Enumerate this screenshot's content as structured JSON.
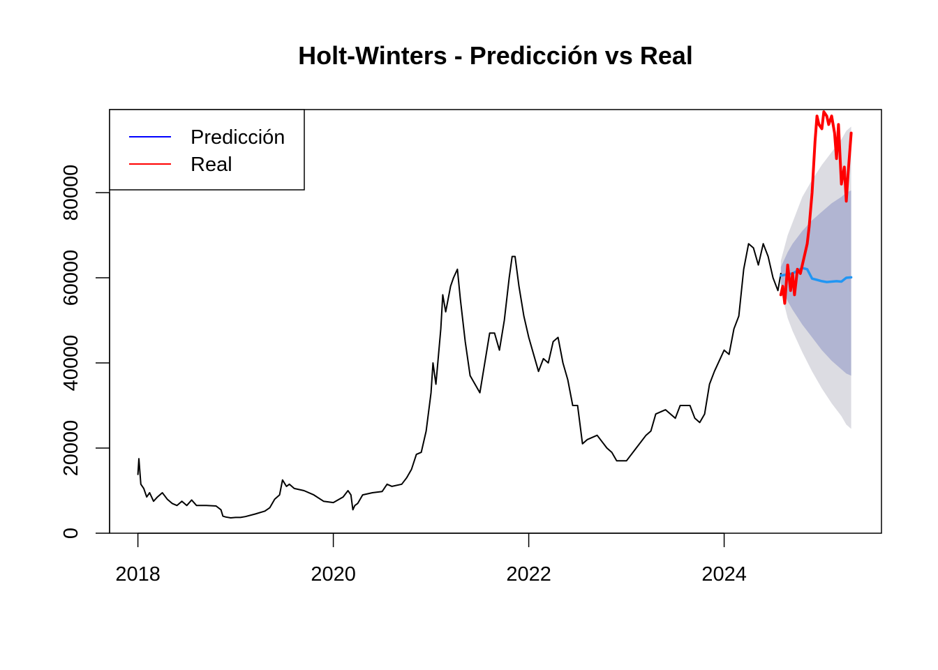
{
  "chart_data": {
    "type": "line",
    "title": "Holt-Winters - Predicción vs Real",
    "xlabel": "",
    "ylabel": "",
    "xlim": [
      2017.71,
      2025.61
    ],
    "ylim": [
      0,
      99500
    ],
    "x_ticks": [
      2018,
      2020,
      2022,
      2024
    ],
    "x_tick_labels": [
      "2018",
      "2020",
      "2022",
      "2024"
    ],
    "y_ticks": [
      0,
      20000,
      40000,
      60000,
      80000
    ],
    "y_tick_labels": [
      "0",
      "20000",
      "40000",
      "60000",
      "80000"
    ],
    "legend": {
      "position": "top-left",
      "entries": [
        {
          "label": "Predicción",
          "color": "#0000ff"
        },
        {
          "label": "Real",
          "color": "#ff0000"
        }
      ]
    },
    "colors": {
      "history": "#000000",
      "forecast": "#2196f3",
      "real": "#ff0000",
      "band95": "#dcdce2",
      "band80": "#b1b5d2"
    },
    "series": [
      {
        "role": "history",
        "x": [
          2018.0,
          2018.01,
          2018.03,
          2018.06,
          2018.09,
          2018.12,
          2018.16,
          2018.2,
          2018.25,
          2018.3,
          2018.35,
          2018.4,
          2018.45,
          2018.5,
          2018.55,
          2018.6,
          2018.7,
          2018.8,
          2018.85,
          2018.87,
          2018.9,
          2018.95,
          2019.0,
          2019.05,
          2019.1,
          2019.2,
          2019.3,
          2019.35,
          2019.4,
          2019.45,
          2019.48,
          2019.52,
          2019.55,
          2019.6,
          2019.7,
          2019.8,
          2019.9,
          2020.0,
          2020.1,
          2020.15,
          2020.18,
          2020.2,
          2020.22,
          2020.25,
          2020.3,
          2020.4,
          2020.5,
          2020.55,
          2020.6,
          2020.7,
          2020.75,
          2020.8,
          2020.85,
          2020.9,
          2020.95,
          2021.0,
          2021.02,
          2021.05,
          2021.1,
          2021.12,
          2021.15,
          2021.2,
          2021.23,
          2021.27,
          2021.3,
          2021.35,
          2021.4,
          2021.45,
          2021.5,
          2021.55,
          2021.6,
          2021.65,
          2021.7,
          2021.75,
          2021.8,
          2021.83,
          2021.86,
          2021.9,
          2021.95,
          2022.0,
          2022.05,
          2022.1,
          2022.15,
          2022.2,
          2022.25,
          2022.3,
          2022.35,
          2022.4,
          2022.45,
          2022.5,
          2022.55,
          2022.6,
          2022.7,
          2022.8,
          2022.85,
          2022.9,
          2023.0,
          2023.1,
          2023.2,
          2023.25,
          2023.3,
          2023.4,
          2023.5,
          2023.55,
          2023.65,
          2023.7,
          2023.75,
          2023.8,
          2023.85,
          2023.9,
          2024.0,
          2024.05,
          2024.1,
          2024.15,
          2024.2,
          2024.25,
          2024.3,
          2024.35,
          2024.4,
          2024.45,
          2024.5,
          2024.55,
          2024.58
        ],
        "y": [
          13800,
          17500,
          11500,
          10500,
          8500,
          9500,
          7500,
          8500,
          9500,
          8000,
          7000,
          6500,
          7500,
          6500,
          7800,
          6500,
          6500,
          6400,
          5500,
          4000,
          3800,
          3600,
          3700,
          3700,
          3900,
          4500,
          5200,
          6000,
          8000,
          9000,
          12500,
          11000,
          11500,
          10500,
          10000,
          9000,
          7500,
          7200,
          8500,
          10000,
          9000,
          5500,
          6500,
          7000,
          9000,
          9500,
          9800,
          11500,
          11000,
          11500,
          13000,
          15000,
          18500,
          19000,
          24000,
          33000,
          40000,
          35000,
          48000,
          56000,
          52000,
          58000,
          60000,
          62000,
          55000,
          45000,
          37000,
          35000,
          33000,
          40000,
          47000,
          47000,
          43000,
          50000,
          60000,
          65000,
          65000,
          58000,
          51000,
          46000,
          42000,
          38000,
          41000,
          40000,
          45000,
          46000,
          40000,
          36000,
          30000,
          30000,
          21000,
          22000,
          23000,
          20000,
          19000,
          17000,
          17000,
          20000,
          23000,
          24000,
          28000,
          29000,
          27000,
          30000,
          30000,
          27000,
          26000,
          28000,
          35000,
          38000,
          43000,
          42000,
          48000,
          51000,
          62000,
          68000,
          67000,
          63000,
          68000,
          65000,
          60000,
          57000,
          61000
        ]
      },
      {
        "role": "forecast",
        "x": [
          2024.58,
          2024.7,
          2024.8,
          2024.85,
          2024.9,
          2024.95,
          2025.0,
          2025.05,
          2025.1,
          2025.15,
          2025.2,
          2025.25,
          2025.3
        ],
        "y": [
          60500,
          61000,
          62300,
          62000,
          59800,
          59500,
          59200,
          59000,
          59100,
          59200,
          59100,
          60000,
          60100
        ]
      },
      {
        "role": "real",
        "x": [
          2024.58,
          2024.6,
          2024.62,
          2024.65,
          2024.68,
          2024.7,
          2024.72,
          2024.75,
          2024.78,
          2024.8,
          2024.83,
          2024.85,
          2024.87,
          2024.9,
          2024.93,
          2024.95,
          2024.97,
          2025.0,
          2025.02,
          2025.05,
          2025.07,
          2025.1,
          2025.13,
          2025.15,
          2025.17,
          2025.2,
          2025.23,
          2025.25,
          2025.27,
          2025.3
        ],
        "y": [
          56000,
          58000,
          54000,
          63000,
          57000,
          61000,
          56000,
          62000,
          61000,
          63000,
          66000,
          68000,
          72000,
          80000,
          92000,
          98000,
          96000,
          95000,
          99000,
          98000,
          96000,
          98000,
          94000,
          88000,
          96000,
          82000,
          86000,
          78000,
          85000,
          94000
        ]
      }
    ],
    "bands": {
      "x": [
        2024.58,
        2024.65,
        2024.7,
        2024.8,
        2024.9,
        2025.0,
        2025.1,
        2025.2,
        2025.25,
        2025.3
      ],
      "upper95": [
        64000,
        70000,
        73000,
        79000,
        83000,
        86500,
        89500,
        92500,
        94500,
        95500
      ],
      "upper80": [
        62500,
        66000,
        68000,
        71000,
        73500,
        75500,
        77500,
        79000,
        80000,
        80500
      ],
      "lower80": [
        58500,
        54500,
        52500,
        49000,
        46000,
        43000,
        40500,
        38500,
        37500,
        37000
      ],
      "lower95": [
        57000,
        50500,
        47500,
        42500,
        38000,
        34000,
        30500,
        27500,
        25500,
        24500
      ]
    }
  }
}
